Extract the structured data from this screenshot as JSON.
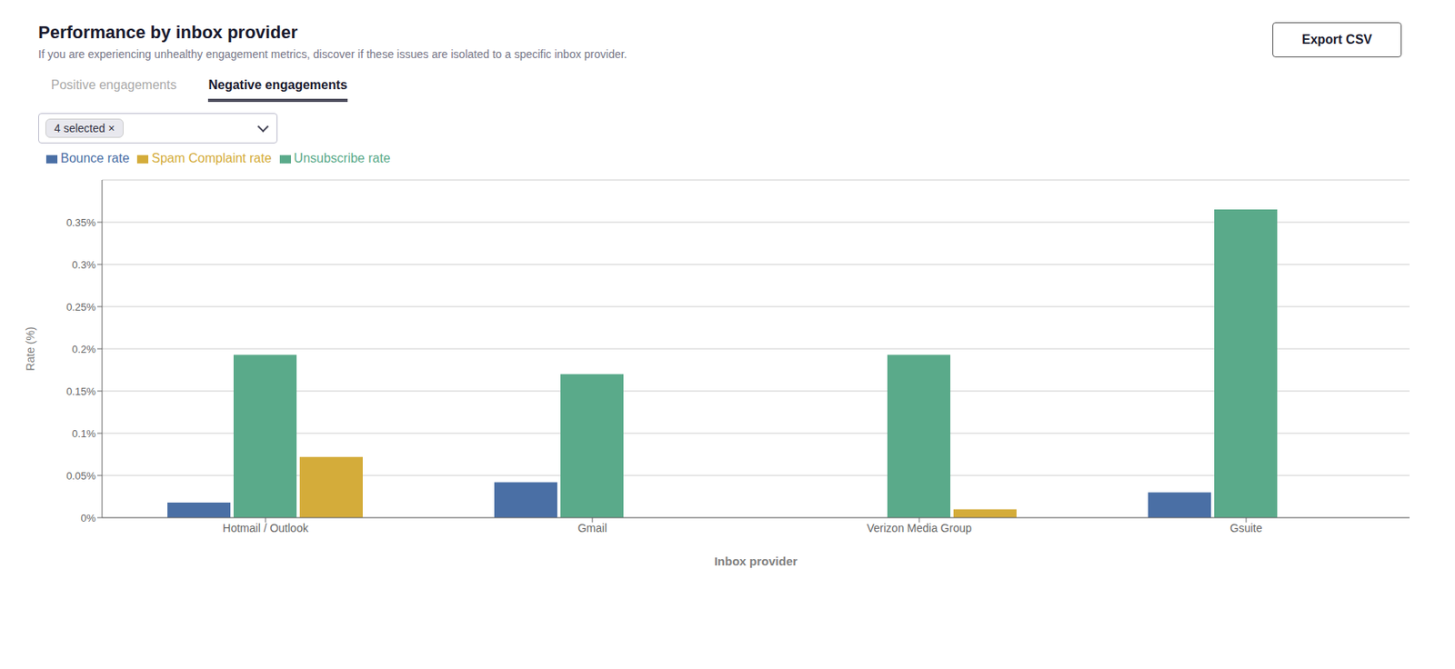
{
  "chart_data": {
    "type": "bar",
    "title": "Performance by inbox provider",
    "subtitle": "If you are experiencing unhealthy engagement metrics, discover if these issues are isolated to a specific inbox provider.",
    "annotations": [
      "Positive engagements",
      "Negative engagements",
      "4 selected ×",
      "Export CSV"
    ],
    "xlabel": "Inbox provider",
    "ylabel": "Rate (%)",
    "categories": [
      "Hotmail / Outlook",
      "Gmail",
      "Verizon Media Group",
      "Gsuite"
    ],
    "series": [
      {
        "name": "Bounce rate",
        "color": "#4a6fa5",
        "values": [
          0.018,
          0.042,
          0.0,
          0.03
        ]
      },
      {
        "name": "Unsubscribe rate",
        "color": "#5aaa8a",
        "values": [
          0.193,
          0.17,
          0.193,
          0.365
        ]
      },
      {
        "name": "Spam Complaint rate",
        "color": "#d4ac3a",
        "values": [
          0.072,
          0.0,
          0.01,
          0.0
        ]
      }
    ],
    "ylim": [
      0,
      0.4
    ],
    "yticks": [
      {
        "value": 0.0,
        "label": "0%"
      },
      {
        "value": 0.05,
        "label": "0.05%"
      },
      {
        "value": 0.1,
        "label": "0.1%"
      },
      {
        "value": 0.15,
        "label": "0.15%"
      },
      {
        "value": 0.2,
        "label": "0.2%"
      },
      {
        "value": 0.25,
        "label": "0.25%"
      },
      {
        "value": 0.3,
        "label": "0.3%"
      },
      {
        "value": 0.35,
        "label": "0.35%"
      }
    ],
    "grid": true
  }
}
